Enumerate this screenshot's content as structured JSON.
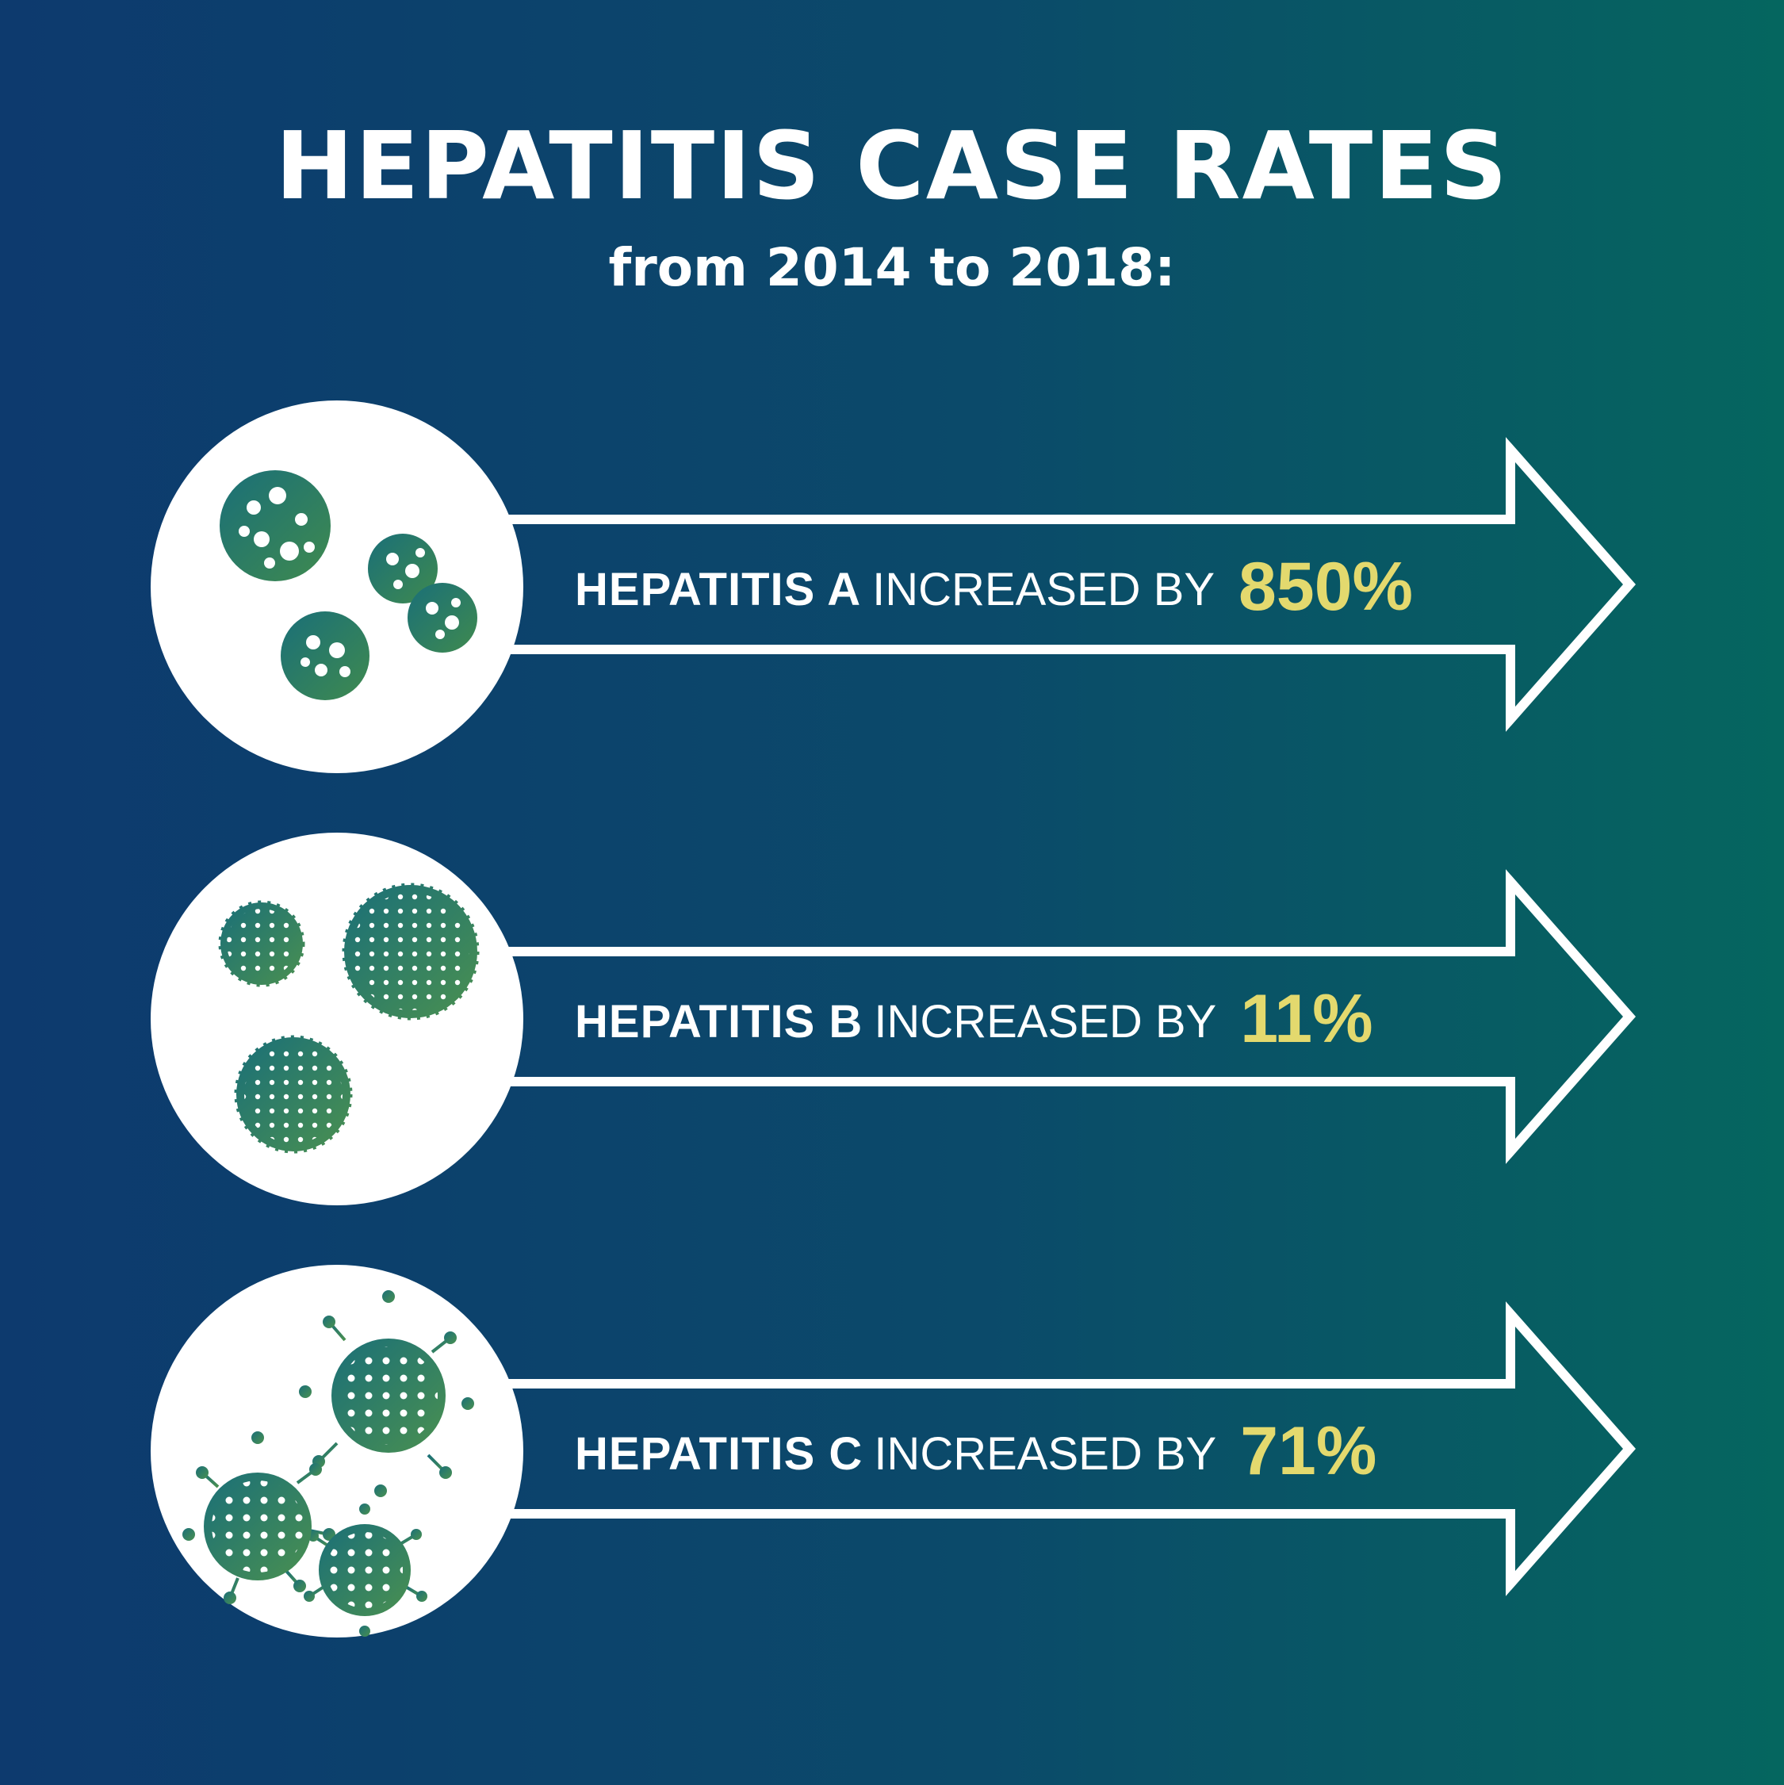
{
  "title": "HEPATITIS CASE RATES",
  "subtitle": "from 2014 to 2018:",
  "colors": {
    "background_left": "#0d3a6e",
    "background_right": "#05665f",
    "accent_percent": "#e3d96e",
    "text": "#ffffff",
    "virus_teal": "#1a6f6f",
    "virus_green": "#3f8a4f"
  },
  "rows": [
    {
      "name": "HEPATITIS A",
      "verb": "INCREASED BY",
      "percent": "850%",
      "icon": "hepatitis-a-virus-icon"
    },
    {
      "name": "HEPATITIS B",
      "verb": "INCREASED BY",
      "percent": "11%",
      "icon": "hepatitis-b-virus-icon"
    },
    {
      "name": "HEPATITIS C",
      "verb": "INCREASED BY",
      "percent": "71%",
      "icon": "hepatitis-c-virus-icon"
    }
  ]
}
